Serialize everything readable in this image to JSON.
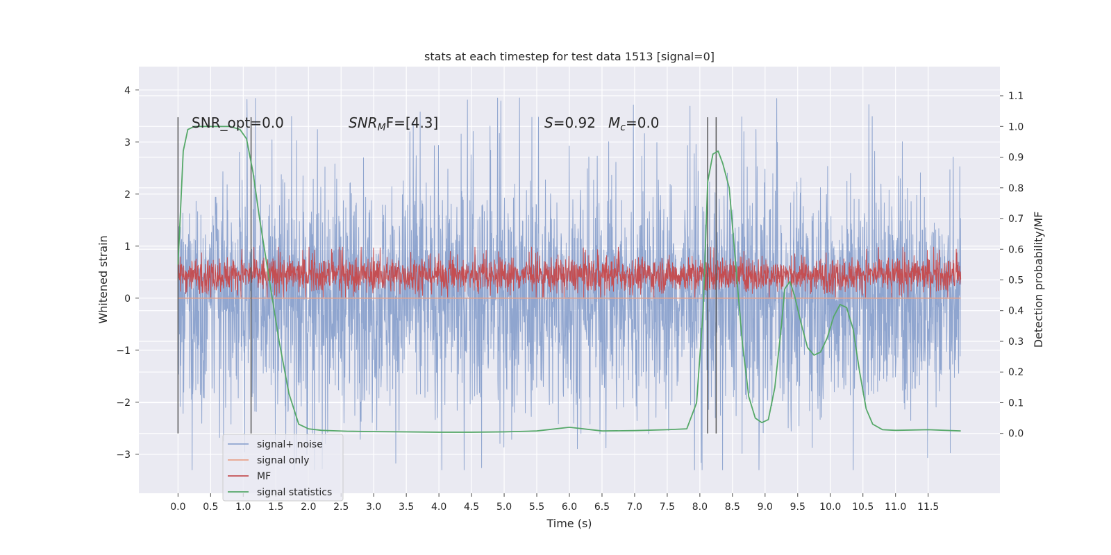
{
  "chart_data": {
    "type": "line",
    "title": "stats at each timestep for test data 1513 [signal=0]",
    "xlabel": "Time (s)",
    "ylabel": "Whitened strain",
    "y2label": "Detection probability/MF",
    "xlim": [
      -0.6,
      12.6
    ],
    "ylim": [
      -3.75,
      4.45
    ],
    "y2lim": [
      -0.195,
      1.195
    ],
    "xticks": [
      "0.0",
      "0.5",
      "1.0",
      "1.5",
      "2.0",
      "2.5",
      "3.0",
      "3.5",
      "4.0",
      "4.5",
      "5.0",
      "5.5",
      "6.0",
      "6.5",
      "7.0",
      "7.5",
      "8.0",
      "8.5",
      "9.0",
      "9.5",
      "10.0",
      "10.5",
      "11.0",
      "11.5"
    ],
    "yticks": [
      "4",
      "3",
      "2",
      "1",
      "0",
      "−1",
      "−2",
      "−3"
    ],
    "y2ticks": [
      "1.1",
      "1.0",
      "0.9",
      "0.8",
      "0.7",
      "0.6",
      "0.5",
      "0.4",
      "0.3",
      "0.2",
      "0.1",
      "0.0"
    ],
    "grid": true,
    "legend_position": "lower-left",
    "annotations": {
      "snr_opt": "SNR_opt=0.0",
      "snr_mf_base": "SNR",
      "snr_mf_sub": "M",
      "snr_mf_rest": "F=[4.3]",
      "s_base": "S",
      "s_rest": "=0.92",
      "mc_base": "M",
      "mc_sub": "c",
      "mc_rest": "=0.0"
    },
    "series": [
      {
        "name": "signal+ noise",
        "color": "#8fa5cf",
        "kind": "noise",
        "x_range": [
          0.0,
          12.0
        ],
        "envelope": [
          -2.6,
          2.7
        ],
        "peak_max": 4.1,
        "peak_min": -3.3
      },
      {
        "name": "signal only",
        "color": "#e8a28a",
        "kind": "flat",
        "x_range": [
          0.0,
          12.0
        ],
        "values": [
          0.0,
          0.0
        ]
      },
      {
        "name": "MF",
        "color": "#c44e52",
        "kind": "noise",
        "x_range": [
          0.0,
          12.0
        ],
        "envelope": [
          0.05,
          0.85
        ],
        "peak_max": 0.98,
        "peak_min": 0.02
      },
      {
        "name": "signal statistics",
        "color": "#55a868",
        "kind": "line",
        "axis": "right",
        "x": [
          0.0,
          0.08,
          0.15,
          0.25,
          0.4,
          0.6,
          0.8,
          0.95,
          1.05,
          1.15,
          1.25,
          1.4,
          1.55,
          1.7,
          1.85,
          2.0,
          2.2,
          2.6,
          3.0,
          3.5,
          4.0,
          4.5,
          5.0,
          5.5,
          6.0,
          6.5,
          7.0,
          7.5,
          7.8,
          7.95,
          8.05,
          8.12,
          8.2,
          8.28,
          8.35,
          8.45,
          8.55,
          8.65,
          8.75,
          8.85,
          8.95,
          9.05,
          9.15,
          9.25,
          9.3,
          9.38,
          9.45,
          9.55,
          9.65,
          9.75,
          9.85,
          9.95,
          10.05,
          10.15,
          10.25,
          10.35,
          10.45,
          10.55,
          10.65,
          10.8,
          11.0,
          11.5,
          12.0
        ],
        "y": [
          0.55,
          0.92,
          0.99,
          1.0,
          1.0,
          1.0,
          1.0,
          0.99,
          0.96,
          0.85,
          0.7,
          0.5,
          0.3,
          0.13,
          0.03,
          0.015,
          0.01,
          0.007,
          0.006,
          0.005,
          0.004,
          0.004,
          0.005,
          0.008,
          0.02,
          0.008,
          0.009,
          0.012,
          0.015,
          0.1,
          0.4,
          0.82,
          0.91,
          0.92,
          0.88,
          0.8,
          0.55,
          0.3,
          0.12,
          0.05,
          0.035,
          0.045,
          0.15,
          0.35,
          0.47,
          0.495,
          0.45,
          0.36,
          0.28,
          0.255,
          0.265,
          0.31,
          0.38,
          0.42,
          0.41,
          0.34,
          0.2,
          0.08,
          0.03,
          0.012,
          0.01,
          0.012,
          0.008
        ]
      }
    ],
    "vlines": [
      0.0,
      1.12,
      8.12,
      8.25
    ]
  }
}
